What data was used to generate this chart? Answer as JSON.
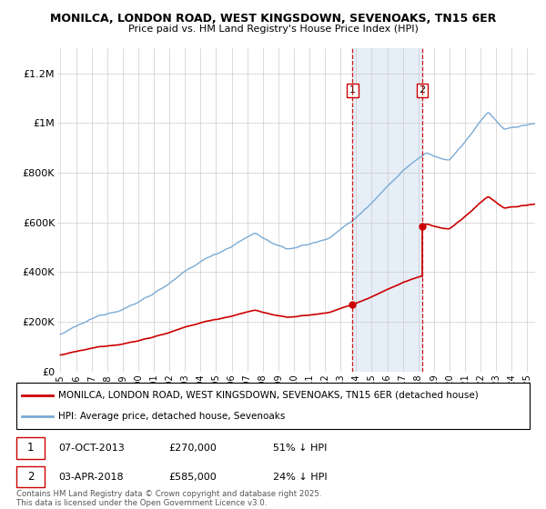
{
  "title": "MONILCA, LONDON ROAD, WEST KINGSDOWN, SEVENOAKS, TN15 6ER",
  "subtitle": "Price paid vs. HM Land Registry's House Price Index (HPI)",
  "ylim": [
    0,
    1300000
  ],
  "yticks": [
    0,
    200000,
    400000,
    600000,
    800000,
    1000000,
    1200000
  ],
  "ytick_labels": [
    "£0",
    "£200K",
    "£400K",
    "£600K",
    "£800K",
    "£1M",
    "£1.2M"
  ],
  "hpi_color": "#7aaad4",
  "price_color": "#cc0000",
  "background_color": "#ffffff",
  "grid_color": "#cccccc",
  "sale1_date": 2013.77,
  "sale1_price": 270000,
  "sale1_label": "1",
  "sale2_date": 2018.25,
  "sale2_price": 585000,
  "sale2_label": "2",
  "shade_color": "#dce8f5",
  "legend_entries": [
    "MONILCA, LONDON ROAD, WEST KINGSDOWN, SEVENOAKS, TN15 6ER (detached house)",
    "HPI: Average price, detached house, Sevenoaks"
  ],
  "table_entries": [
    [
      "1",
      "07-OCT-2013",
      "£270,000",
      "51% ↓ HPI"
    ],
    [
      "2",
      "03-APR-2018",
      "£585,000",
      "24% ↓ HPI"
    ]
  ],
  "footnote": "Contains HM Land Registry data © Crown copyright and database right 2025.\nThis data is licensed under the Open Government Licence v3.0.",
  "xmin": 1994.8,
  "xmax": 2025.5
}
